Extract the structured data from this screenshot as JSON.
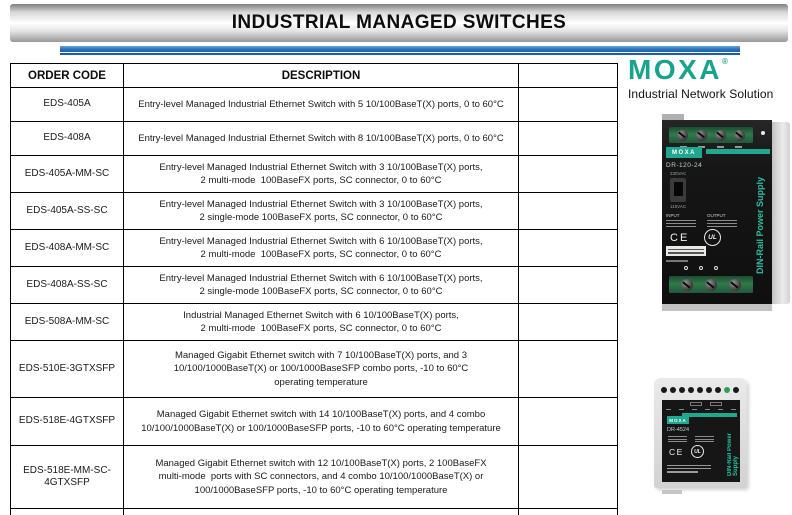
{
  "page": {
    "title": "INDUSTRIAL MANAGED SWITCHES"
  },
  "logo": {
    "brand": "MOXA",
    "registered": "®",
    "tagline": "Industrial Network Solution"
  },
  "table": {
    "columns": [
      "ORDER CODE",
      "DESCRIPTION",
      ""
    ],
    "rows": [
      {
        "code": "EDS-405A",
        "description": "Entry-level Managed Industrial Ethernet Switch with 5 10/100BaseT(X) ports, 0 to 60°C"
      },
      {
        "code": "EDS-408A",
        "description": "Entry-level Managed Industrial Ethernet Switch with 8 10/100BaseT(X) ports, 0 to 60°C"
      },
      {
        "code": "EDS-405A-MM-SC",
        "description": "Entry-level Managed Industrial Ethernet Switch with 3 10/100BaseT(X) ports,\n2 multi-mode  100BaseFX ports, SC connector, 0 to 60°C"
      },
      {
        "code": "EDS-405A-SS-SC",
        "description": "Entry-level Managed Industrial Ethernet Switch with 3 10/100BaseT(X) ports,\n2 single-mode 100BaseFX ports, SC connector, 0 to 60°C"
      },
      {
        "code": "EDS-408A-MM-SC",
        "description": "Entry-level Managed Industrial Ethernet Switch with 6 10/100BaseT(X) ports,\n2 multi-mode  100BaseFX ports, SC connector, 0 to 60°C"
      },
      {
        "code": "EDS-408A-SS-SC",
        "description": "Entry-level Managed Industrial Ethernet Switch with 6 10/100BaseT(X) ports,\n2 single-mode 100BaseFX ports, SC connector, 0 to 60°C"
      },
      {
        "code": "EDS-508A-MM-SC",
        "description": "Industrial Managed Ethernet Switch with 6 10/100BaseT(X) ports,\n2 multi-mode  100BaseFX ports, SC connector, 0 to 60°C"
      },
      {
        "code": "EDS-510E-3GTXSFP",
        "description": "Managed Gigabit Ethernet switch with 7 10/100BaseT(X) ports, and 3\n10/100/1000BaseT(X) or 100/1000BaseSFP combo ports, -10 to 60°C\noperating temperature"
      },
      {
        "code": "EDS-518E-4GTXSFP",
        "description": "Managed Gigabit Ethernet switch with 14 10/100BaseT(X) ports, and 4 combo\n10/100/1000BaseT(X) or 100/1000BaseSFP ports, -10 to 60°C operating temperature"
      },
      {
        "code": "EDS-518E-MM-SC-4GTXSFP",
        "description": "Managed Gigabit Ethernet switch with 12 10/100BaseT(X) ports, 2 100BaseFX\nmulti-mode  ports with SC connectors, and 4 combo 10/100/1000BaseT(X) or\n100/1000BaseSFP ports, -10 to 60°C operating temperature"
      }
    ]
  },
  "products": [
    {
      "model": "DR-120-24",
      "brand": "MOXA",
      "vertical_label": "DIN-Rail Power Supply",
      "voltage_high": "230VAC",
      "voltage_low": "115VAC",
      "spec_labels": [
        "INPUT",
        "OUTPUT"
      ],
      "ce_mark": "CE",
      "ul_mark": "UL"
    },
    {
      "model": "DR-4524",
      "brand": "MOXA",
      "vertical_label": "DIN-Rail Power Supply",
      "ce_mark": "CE",
      "ul_mark": "UL"
    }
  ],
  "colors": {
    "moxa_teal": "#18A48C",
    "device_teal": "#1FA78F",
    "teal_bright": "#2AC0A4",
    "divider_blue": "#2A72BA",
    "terminal_green": "#2C6E46",
    "hole_green": "#2F9E57"
  }
}
